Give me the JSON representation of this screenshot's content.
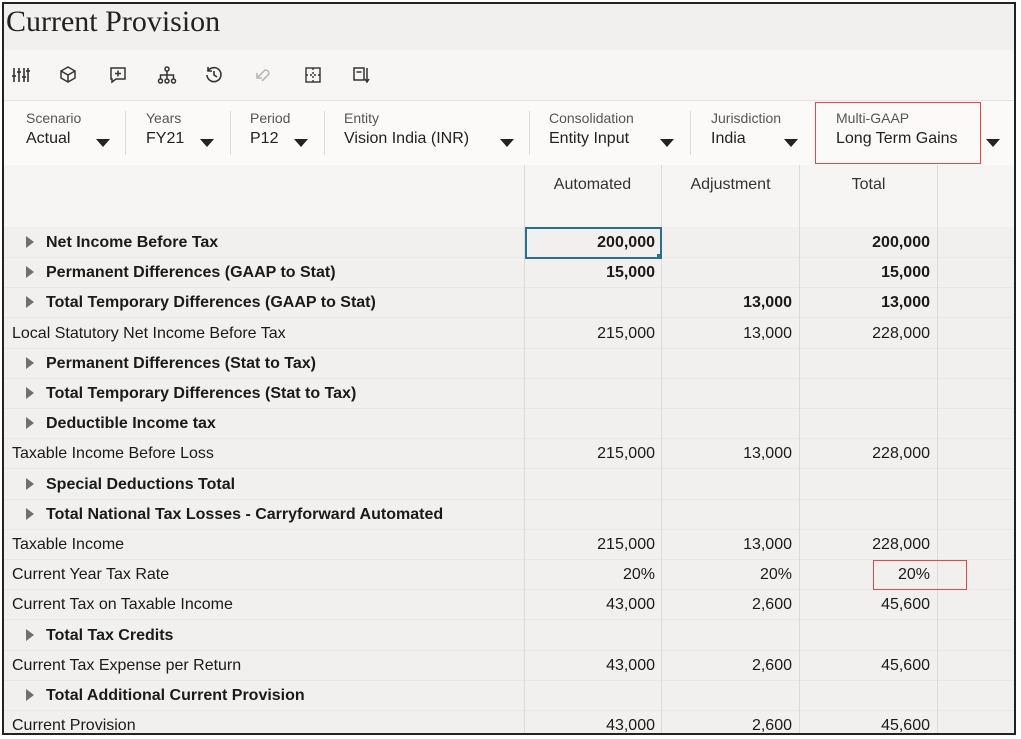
{
  "page_title": "Current Provision",
  "toolbar": {
    "icons": [
      "adjust-sliders-icon",
      "cube-icon",
      "add-comment-icon",
      "hierarchy-icon",
      "history-icon",
      "undo-icon",
      "grid-view-icon",
      "export-icon"
    ]
  },
  "pov": [
    {
      "label": "Scenario",
      "value": "Actual"
    },
    {
      "label": "Years",
      "value": "FY21"
    },
    {
      "label": "Period",
      "value": "P12"
    },
    {
      "label": "Entity",
      "value": "Vision India (INR)"
    },
    {
      "label": "Consolidation",
      "value": "Entity Input"
    },
    {
      "label": "Jurisdiction",
      "value": "India"
    },
    {
      "label": "Multi-GAAP",
      "value": "Long Term Gains"
    }
  ],
  "columns": [
    "Automated",
    "Adjustment",
    "Total"
  ],
  "rows": [
    {
      "label": "Net Income Before Tax",
      "expandable": true,
      "bold": true,
      "automated": "200,000",
      "adjustment": "",
      "total": "200,000"
    },
    {
      "label": "Permanent Differences (GAAP to Stat)",
      "expandable": true,
      "bold": true,
      "automated": "15,000",
      "adjustment": "",
      "total": "15,000"
    },
    {
      "label": "Total Temporary Differences (GAAP to Stat)",
      "expandable": true,
      "bold": true,
      "automated": "",
      "adjustment": "13,000",
      "total": "13,000"
    },
    {
      "label": "Local Statutory Net Income Before Tax",
      "expandable": false,
      "bold": false,
      "automated": "215,000",
      "adjustment": "13,000",
      "total": "228,000"
    },
    {
      "label": "Permanent Differences (Stat to Tax)",
      "expandable": true,
      "bold": true,
      "automated": "",
      "adjustment": "",
      "total": ""
    },
    {
      "label": "Total Temporary Differences (Stat to Tax)",
      "expandable": true,
      "bold": true,
      "automated": "",
      "adjustment": "",
      "total": ""
    },
    {
      "label": "Deductible Income tax",
      "expandable": true,
      "bold": true,
      "automated": "",
      "adjustment": "",
      "total": ""
    },
    {
      "label": "Taxable Income Before Loss",
      "expandable": false,
      "bold": false,
      "automated": "215,000",
      "adjustment": "13,000",
      "total": "228,000"
    },
    {
      "label": "Special Deductions Total",
      "expandable": true,
      "bold": true,
      "automated": "",
      "adjustment": "",
      "total": ""
    },
    {
      "label": "Total National Tax Losses - Carryforward Automated",
      "expandable": true,
      "bold": true,
      "automated": "",
      "adjustment": "",
      "total": ""
    },
    {
      "label": "Taxable Income",
      "expandable": false,
      "bold": false,
      "automated": "215,000",
      "adjustment": "13,000",
      "total": "228,000"
    },
    {
      "label": "Current Year Tax Rate",
      "expandable": false,
      "bold": false,
      "automated": "20%",
      "adjustment": "20%",
      "total": "20%"
    },
    {
      "label": "Current Tax on Taxable Income",
      "expandable": false,
      "bold": false,
      "automated": "43,000",
      "adjustment": "2,600",
      "total": "45,600"
    },
    {
      "label": "Total Tax Credits",
      "expandable": true,
      "bold": true,
      "automated": "",
      "adjustment": "",
      "total": ""
    },
    {
      "label": "Current Tax Expense per Return",
      "expandable": false,
      "bold": false,
      "automated": "43,000",
      "adjustment": "2,600",
      "total": "45,600"
    },
    {
      "label": "Total Additional Current Provision",
      "expandable": true,
      "bold": true,
      "automated": "",
      "adjustment": "",
      "total": ""
    },
    {
      "label": "Current Provision",
      "expandable": false,
      "bold": false,
      "automated": "43,000",
      "adjustment": "2,600",
      "total": "45,600"
    }
  ],
  "colors": {
    "highlight": "#e0484a",
    "selection": "#2b6f8f"
  }
}
